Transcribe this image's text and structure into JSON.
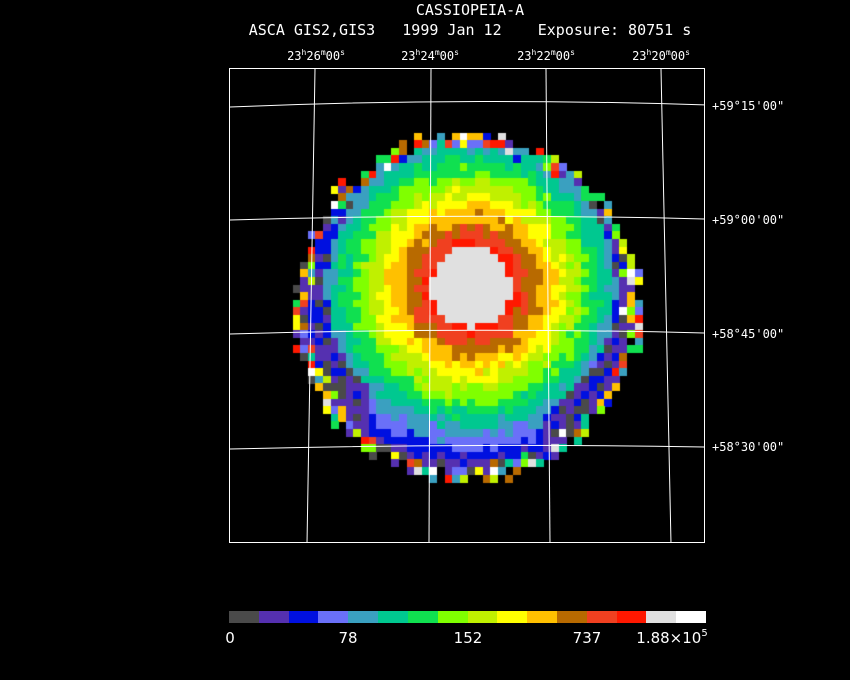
{
  "header": {
    "object": "CASSIOPEIA-A",
    "instrument": "ASCA GIS2,GIS3",
    "date": "1999 Jan 12",
    "exposure_label": "Exposure:",
    "exposure_value": "80751 s"
  },
  "ra_ticks": [
    {
      "h": "23",
      "m": "26",
      "s": "00"
    },
    {
      "h": "23",
      "m": "24",
      "s": "00"
    },
    {
      "h": "23",
      "m": "22",
      "s": "00"
    },
    {
      "h": "23",
      "m": "20",
      "s": "00"
    }
  ],
  "dec_ticks": [
    "+59°15'00\"",
    "+59°00'00\"",
    "+58°45'00\"",
    "+58°30'00\""
  ],
  "colorbar": {
    "colors": [
      "#4a4a4a",
      "#5530b0",
      "#0010e0",
      "#6a70f8",
      "#3aa0c0",
      "#00c890",
      "#10e050",
      "#80ff00",
      "#c0f000",
      "#ffff00",
      "#ffc000",
      "#b86a00",
      "#f04020",
      "#ff1800",
      "#e0e0e0",
      "#ffffff"
    ],
    "labels": [
      "0",
      "78",
      "152",
      "737",
      "1.88×10",
      "5"
    ]
  },
  "image": {
    "label": "X-ray intensity image of Cassiopeia A"
  }
}
